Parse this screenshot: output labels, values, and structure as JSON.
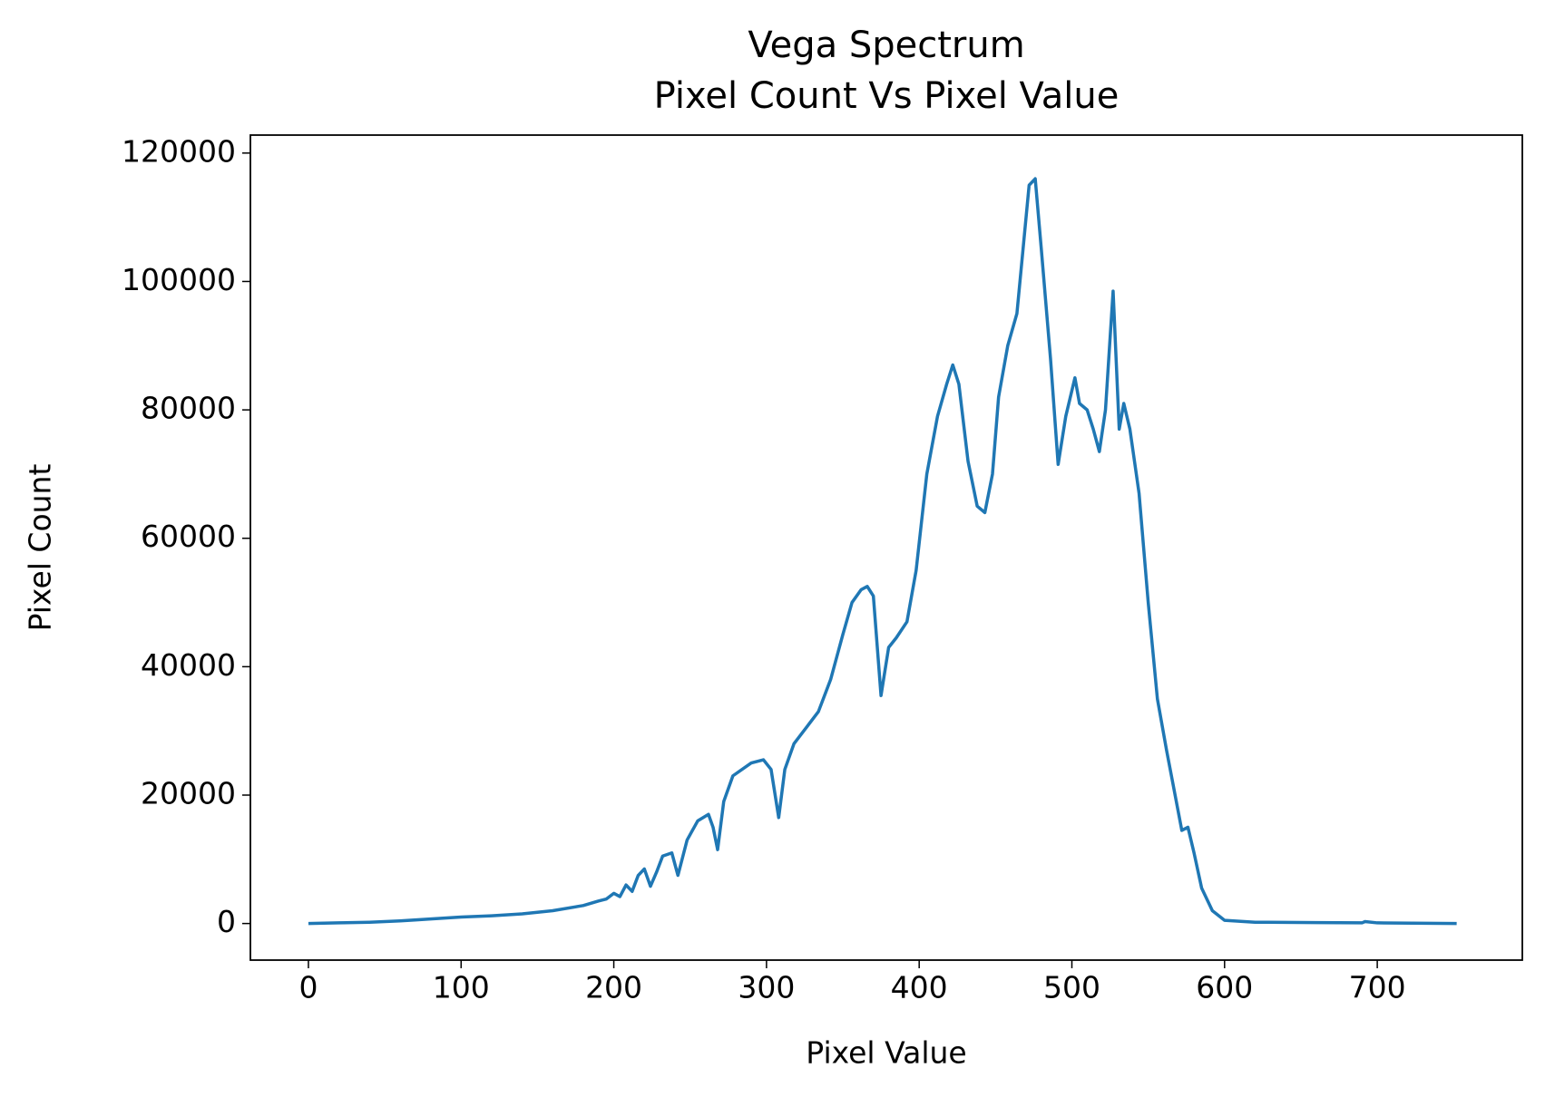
{
  "chart_data": {
    "type": "line",
    "title": "Vega Spectrum",
    "subtitle": "Pixel Count Vs Pixel Value",
    "xlabel": "Pixel Value",
    "ylabel": "Pixel Count",
    "x": [
      0,
      20,
      40,
      60,
      80,
      100,
      120,
      140,
      160,
      180,
      190,
      195,
      200,
      204,
      208,
      212,
      216,
      220,
      224,
      228,
      232,
      238,
      242,
      248,
      255,
      262,
      265,
      268,
      272,
      278,
      290,
      298,
      303,
      308,
      312,
      318,
      326,
      334,
      342,
      350,
      356,
      362,
      366,
      370,
      375,
      380,
      385,
      392,
      398,
      405,
      412,
      418,
      422,
      426,
      432,
      438,
      443,
      448,
      452,
      458,
      464,
      468,
      472,
      476,
      480,
      486,
      491,
      496,
      502,
      505,
      510,
      514,
      518,
      522,
      527,
      531,
      534,
      538,
      544,
      550,
      556,
      562,
      566,
      572,
      576,
      580,
      585,
      592,
      600,
      620,
      660,
      690,
      692,
      700,
      752
    ],
    "values": [
      0,
      100,
      200,
      400,
      700,
      1000,
      1200,
      1500,
      2000,
      2800,
      3500,
      3800,
      4700,
      4200,
      6000,
      5000,
      7500,
      8500,
      5800,
      8000,
      10500,
      11000,
      7500,
      13000,
      16000,
      17000,
      15000,
      11500,
      19000,
      23000,
      25000,
      25500,
      24000,
      16500,
      24000,
      28000,
      30500,
      33000,
      38000,
      45000,
      50000,
      52000,
      52500,
      51000,
      35500,
      43000,
      44500,
      47000,
      55000,
      70000,
      79000,
      84000,
      87000,
      84000,
      72000,
      65000,
      64000,
      70000,
      82000,
      90000,
      95000,
      105000,
      115000,
      116000,
      105000,
      88000,
      71500,
      79000,
      85000,
      81000,
      80000,
      77000,
      73500,
      80000,
      98500,
      77000,
      81000,
      77000,
      67000,
      50000,
      35000,
      27000,
      22000,
      14500,
      15000,
      11000,
      5500,
      2000,
      500,
      200,
      150,
      100,
      300,
      100,
      0
    ],
    "color": "#1f77b4",
    "xlim": [
      -38,
      795
    ],
    "ylim": [
      -5700,
      122800
    ],
    "xticks": [
      0,
      100,
      200,
      300,
      400,
      500,
      600,
      700
    ],
    "yticks": [
      0,
      20000,
      40000,
      60000,
      80000,
      100000,
      120000
    ]
  }
}
